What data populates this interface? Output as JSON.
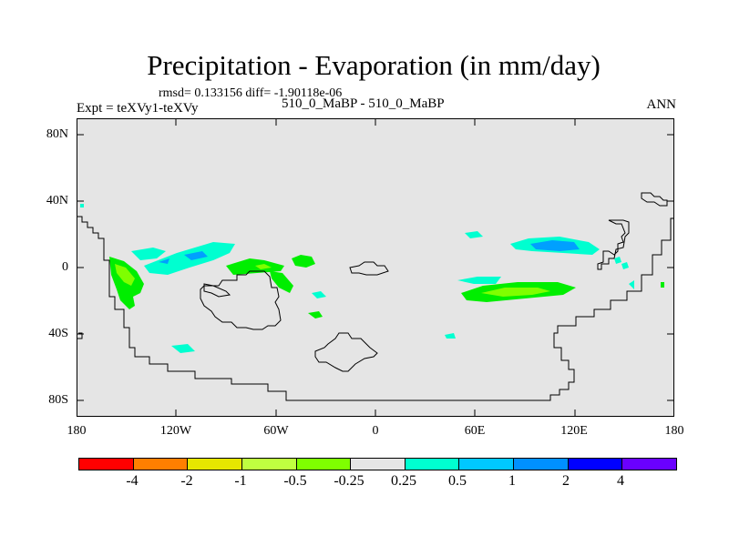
{
  "title": "Precipitation - Evaporation (in mm/day)",
  "stats_text": "rmsd= 0.133156 diff= -1.90118e-06",
  "experiment_text": "Expt = teXVy1-teXVy",
  "case_text": "510_0_MaBP - 510_0_MaBP",
  "season": "ANN",
  "lat_ticks": [
    "80N",
    "40N",
    "0",
    "40S",
    "80S"
  ],
  "lon_ticks": [
    "180",
    "120W",
    "60W",
    "0",
    "60E",
    "120E",
    "180"
  ],
  "colorbar": {
    "colors": [
      "#ff0000",
      "#ff7f00",
      "#e6e600",
      "#bfff40",
      "#7fff00",
      "#e5e5e5",
      "#00ffd0",
      "#00c8ff",
      "#0090ff",
      "#0000ff",
      "#6a00ff"
    ],
    "labels": [
      "-4",
      "-2",
      "-1",
      "-0.5",
      "-0.25",
      "0.25",
      "0.5",
      "1",
      "2",
      "4"
    ]
  },
  "map_colors": {
    "ocean": "#e5e5e5",
    "coast": "#000000",
    "green": "#00ee00",
    "light_green": "#7fff00",
    "cyan": "#00ffd0",
    "blue": "#00a0ff"
  }
}
